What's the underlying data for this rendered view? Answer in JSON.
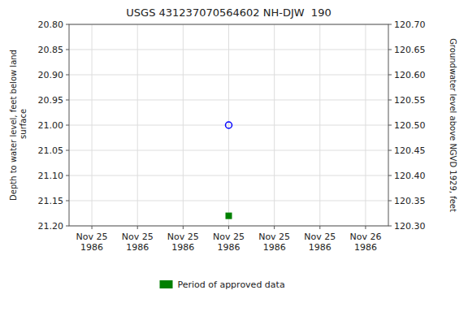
{
  "chart_data": {
    "type": "scatter",
    "title": "USGS 431237070564602 NH-DJW  190",
    "ylabel": "Depth to water level, feet below land\n surface",
    "y2label": "Groundwater level above NGVD 1929, feet",
    "categories": [
      "Nov 25\n1986",
      "Nov 25\n1986",
      "Nov 25\n1986",
      "Nov 25\n1986",
      "Nov 25\n1986",
      "Nov 25\n1986",
      "Nov 26\n1986"
    ],
    "series": [
      {
        "color": "blue",
        "marker": "circle-open",
        "values": [
          null,
          null,
          null,
          21.0,
          null,
          null,
          null
        ]
      },
      {
        "name": "Period of approved data",
        "color": "green",
        "marker": "square",
        "values": [
          null,
          null,
          null,
          21.18,
          null,
          null,
          null
        ]
      }
    ],
    "ylim": [
      21.2,
      20.8
    ],
    "yticks": [
      {
        "value": 20.8,
        "label": "20.80"
      },
      20.85,
      {
        "value": 20.9,
        "label": "20.90"
      },
      20.95,
      {
        "value": 21.0,
        "label": "21.00"
      },
      21.05,
      {
        "value": 21.1,
        "label": "21.10"
      },
      21.15,
      {
        "value": 21.2,
        "label": "21.20"
      }
    ],
    "y2lim": [
      120.3,
      120.7
    ],
    "y2ticks": [
      {
        "value": 120.7,
        "label": "120.70"
      },
      120.65,
      {
        "value": 120.6,
        "label": "120.60"
      },
      120.55,
      {
        "value": 120.5,
        "label": "120.50"
      },
      120.45,
      {
        "value": 120.4,
        "label": "120.40"
      },
      120.35,
      {
        "value": 120.3,
        "label": "120.30"
      }
    ],
    "grid": true,
    "legend": "bottom"
  }
}
